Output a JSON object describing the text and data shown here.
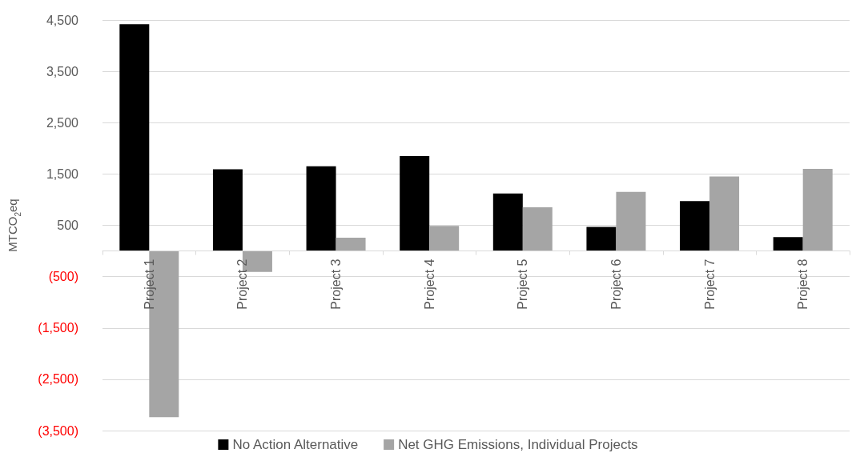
{
  "chart_data": {
    "type": "bar",
    "ylabel": "MTCO$_{2}$eq",
    "categories": [
      "Project 1",
      "Project 2",
      "Project 3",
      "Project 4",
      "Project 5",
      "Project 6",
      "Project 7",
      "Project 8"
    ],
    "series": [
      {
        "name": "No Action Alternative",
        "color": "#000000",
        "values": [
          4420,
          1590,
          1650,
          1850,
          1120,
          470,
          970,
          270
        ]
      },
      {
        "name": "Net GHG Emissions, Individual Projects",
        "color": "#a5a5a5",
        "values": [
          -3240,
          -410,
          260,
          490,
          850,
          1150,
          1450,
          1600
        ]
      }
    ],
    "ylim": [
      -3500,
      4500
    ],
    "yticks": [
      {
        "value": -3500,
        "label": "(3,500)"
      },
      {
        "value": -2500,
        "label": "(2,500)"
      },
      {
        "value": -1500,
        "label": "(1,500)"
      },
      {
        "value": -500,
        "label": "(500)"
      },
      500,
      {
        "value": 1500,
        "label": "1,500"
      },
      {
        "value": 2500,
        "label": "2,500"
      },
      {
        "value": 3500,
        "label": "3,500"
      },
      {
        "value": 4500,
        "label": "4,500"
      }
    ],
    "grid": "y",
    "legend": "bottom"
  }
}
